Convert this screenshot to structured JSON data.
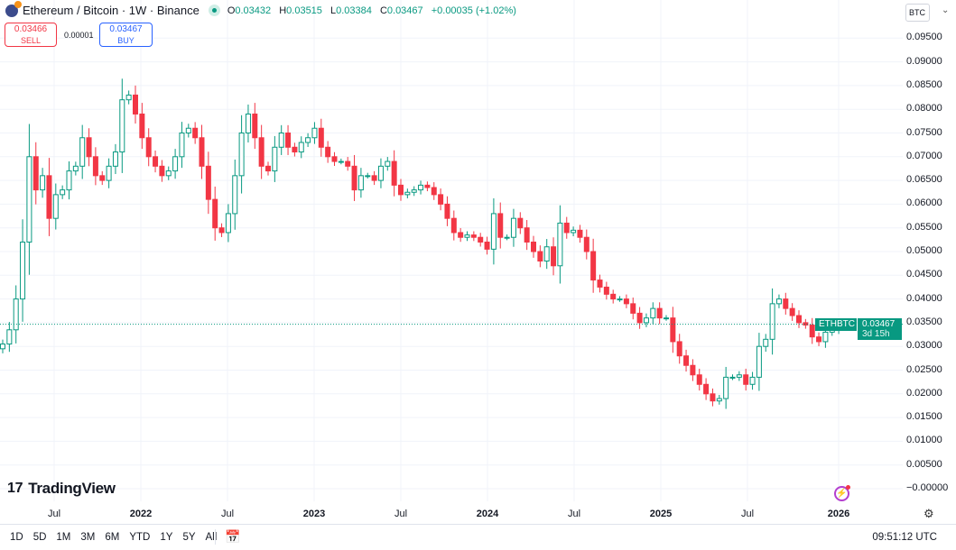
{
  "header": {
    "symbol": "Ethereum / Bitcoin · 1W · Binance",
    "o_label": "O",
    "o": "0.03432",
    "h_label": "H",
    "h": "0.03515",
    "l_label": "L",
    "l": "0.03384",
    "c_label": "C",
    "c": "0.03467",
    "change": "+0.00035 (+1.02%)"
  },
  "trade": {
    "sell_price": "0.03466",
    "sell_label": "SELL",
    "spread": "0.00001",
    "buy_price": "0.03467",
    "buy_label": "BUY"
  },
  "currency": "BTC",
  "price_tag": {
    "symbol": "ETHBTC",
    "price": "0.03467",
    "countdown": "3d 15h"
  },
  "logo": "TradingView",
  "range_buttons": [
    "1D",
    "5D",
    "1M",
    "3M",
    "6M",
    "YTD",
    "1Y",
    "5Y",
    "All"
  ],
  "clock": "09:51:12 UTC",
  "colors": {
    "up": "#089981",
    "down": "#f23645",
    "grid": "#f0f3fa"
  },
  "chart_data": {
    "type": "candlestick",
    "interval": "1W",
    "y_ticks": [
      "0.09500",
      "0.09000",
      "0.08500",
      "0.08000",
      "0.07500",
      "0.07000",
      "0.06500",
      "0.06000",
      "0.05500",
      "0.05000",
      "0.04500",
      "0.04000",
      "0.03500",
      "0.03000",
      "0.02500",
      "0.02000",
      "0.01500",
      "0.01000",
      "0.00500",
      "−0.00000"
    ],
    "ylim": [
      0,
      0.095
    ],
    "x_ticks": [
      {
        "label": "Jul",
        "year": false
      },
      {
        "label": "2022",
        "year": true
      },
      {
        "label": "Jul",
        "year": false
      },
      {
        "label": "2023",
        "year": true
      },
      {
        "label": "Jul",
        "year": false
      },
      {
        "label": "2024",
        "year": true
      },
      {
        "label": "Jul",
        "year": false
      },
      {
        "label": "2025",
        "year": true
      },
      {
        "label": "Jul",
        "year": false
      },
      {
        "label": "2026",
        "year": true
      }
    ],
    "closes": [
      0.0305,
      0.0335,
      0.04,
      0.052,
      0.07,
      0.063,
      0.066,
      0.057,
      0.062,
      0.063,
      0.067,
      0.068,
      0.074,
      0.07,
      0.066,
      0.065,
      0.068,
      0.071,
      0.082,
      0.083,
      0.079,
      0.074,
      0.07,
      0.068,
      0.066,
      0.067,
      0.07,
      0.075,
      0.076,
      0.074,
      0.068,
      0.061,
      0.055,
      0.054,
      0.058,
      0.066,
      0.075,
      0.079,
      0.074,
      0.068,
      0.067,
      0.072,
      0.075,
      0.072,
      0.071,
      0.073,
      0.074,
      0.076,
      0.072,
      0.07,
      0.069,
      0.069,
      0.068,
      0.063,
      0.066,
      0.066,
      0.065,
      0.068,
      0.069,
      0.064,
      0.062,
      0.0625,
      0.063,
      0.064,
      0.0635,
      0.062,
      0.06,
      0.057,
      0.054,
      0.053,
      0.0535,
      0.053,
      0.052,
      0.0505,
      0.058,
      0.053,
      0.053,
      0.057,
      0.055,
      0.052,
      0.05,
      0.048,
      0.051,
      0.047,
      0.056,
      0.054,
      0.0545,
      0.053,
      0.05,
      0.044,
      0.0425,
      0.041,
      0.04,
      0.04,
      0.039,
      0.037,
      0.035,
      0.036,
      0.038,
      0.036,
      0.036,
      0.031,
      0.028,
      0.026,
      0.024,
      0.022,
      0.02,
      0.0185,
      0.019,
      0.0235,
      0.0235,
      0.024,
      0.022,
      0.0235,
      0.03,
      0.0315,
      0.039,
      0.04,
      0.038,
      0.0365,
      0.035,
      0.0345,
      0.032,
      0.031,
      0.033,
      0.0335,
      0.0343
    ],
    "last_candle": {
      "open": 0.03432,
      "high": 0.03515,
      "low": 0.03384,
      "close": 0.03467
    },
    "last_price": 0.03467
  }
}
